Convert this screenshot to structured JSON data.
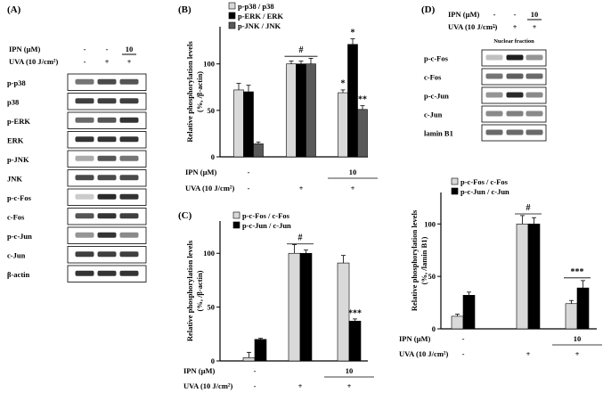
{
  "panels": {
    "A": {
      "label": "(A)",
      "treat": {
        "ipn_label": "IPN (µM)",
        "uva_label": "UVA (10 J/cm²)",
        "ipn_values": [
          "-",
          "-",
          "10"
        ],
        "uva_values": [
          "-",
          "+",
          "+"
        ]
      },
      "blots": [
        {
          "label": "p-p38",
          "bands": [
            0.55,
            0.75,
            0.7
          ]
        },
        {
          "label": "p38",
          "bands": [
            0.8,
            0.8,
            0.8
          ]
        },
        {
          "label": "p-ERK",
          "bands": [
            0.6,
            0.7,
            0.85
          ]
        },
        {
          "label": "ERK",
          "bands": [
            0.85,
            0.85,
            0.85
          ]
        },
        {
          "label": "p-JNK",
          "bands": [
            0.3,
            0.7,
            0.55
          ]
        },
        {
          "label": "JNK",
          "bands": [
            0.75,
            0.75,
            0.75
          ]
        },
        {
          "label": "p-c-Fos",
          "bands": [
            0.15,
            0.9,
            0.85
          ]
        },
        {
          "label": "c-Fos",
          "bands": [
            0.7,
            0.85,
            0.8
          ]
        },
        {
          "label": "p-c-Jun",
          "bands": [
            0.4,
            0.85,
            0.45
          ]
        },
        {
          "label": "c-Jun",
          "bands": [
            0.8,
            0.8,
            0.8
          ]
        },
        {
          "label": "β-actin",
          "bands": [
            0.85,
            0.85,
            0.85
          ]
        }
      ]
    },
    "D_blot": {
      "label": "(D)",
      "treat": {
        "ipn_label": "IPN (µM)",
        "uva_label": "UVA (10 J/cm²)",
        "ipn_values": [
          "-",
          "-",
          "10"
        ],
        "uva_values": [
          "-",
          "+",
          "+"
        ]
      },
      "fraction_label": "Nuclear fraction",
      "blots": [
        {
          "label": "p-c-Fos",
          "bands": [
            0.2,
            0.95,
            0.4
          ]
        },
        {
          "label": "c-Fos",
          "bands": [
            0.55,
            0.65,
            0.6
          ]
        },
        {
          "label": "p-c-Jun",
          "bands": [
            0.4,
            0.9,
            0.45
          ]
        },
        {
          "label": "c-Jun",
          "bands": [
            0.45,
            0.5,
            0.45
          ]
        },
        {
          "label": "lamin B1",
          "bands": [
            0.6,
            0.6,
            0.6
          ]
        }
      ]
    }
  },
  "chart_data": [
    {
      "panel": "(B)",
      "type": "bar",
      "ylabel": "Relative phosphorylation levels (%, /β-actin)",
      "ylim": [
        0,
        140
      ],
      "yticks": [
        0,
        50,
        100
      ],
      "groups": 3,
      "series": [
        {
          "name": "p-p38 / p38",
          "color": "#d9d9d9",
          "values": [
            72,
            100,
            69
          ],
          "errors": [
            7,
            3,
            3
          ]
        },
        {
          "name": "p-ERK / ERK",
          "color": "#000000",
          "values": [
            70,
            100,
            121
          ],
          "errors": [
            7,
            3,
            6
          ]
        },
        {
          "name": "p-JNK / JNK",
          "color": "#595959",
          "values": [
            14,
            100,
            51
          ],
          "errors": [
            2,
            6,
            4
          ]
        }
      ],
      "annotations": [
        {
          "text": "#",
          "group": 1,
          "bracket": true,
          "y": 112
        },
        {
          "text": "*",
          "group": 2,
          "series": 0,
          "y": 76
        },
        {
          "text": "*",
          "group": 2,
          "series": 1,
          "y": 131
        },
        {
          "text": "**",
          "group": 2,
          "series": 2,
          "y": 59
        }
      ],
      "ipn_label": "IPN (µM)",
      "uva_label": "UVA (10 J/cm²)",
      "ipn_values": [
        "-",
        "",
        "10"
      ],
      "uva_values": [
        "-",
        "+",
        "+"
      ]
    },
    {
      "panel": "(C)",
      "type": "bar",
      "ylabel": "Relative phosphorylation levels (%, /β-actin)",
      "ylim": [
        0,
        130
      ],
      "yticks": [
        0,
        50,
        100
      ],
      "groups": 3,
      "series": [
        {
          "name": "p-c-Fos / c-Fos",
          "color": "#d9d9d9",
          "values": [
            3,
            100,
            91
          ],
          "errors": [
            5,
            8,
            7
          ]
        },
        {
          "name": "p-c-Jun / c-Jun",
          "color": "#000000",
          "values": [
            20,
            100,
            37
          ],
          "errors": [
            1,
            3,
            2
          ]
        }
      ],
      "annotations": [
        {
          "text": "#",
          "group": 1,
          "bracket": true,
          "y": 112
        },
        {
          "text": "***",
          "group": 2,
          "series": 1,
          "y": 42
        }
      ],
      "ipn_label": "IPN (µM)",
      "uva_label": "UVA (10 J/cm²)",
      "ipn_values": [
        "-",
        "",
        "10"
      ],
      "uva_values": [
        "-",
        "+",
        "+"
      ]
    },
    {
      "panel": "(D)",
      "type": "bar",
      "ylabel": "Relative phosphorylation levels (%, /lamin B1)",
      "ylim": [
        0,
        130
      ],
      "yticks": [
        0,
        50,
        100
      ],
      "groups": 3,
      "series": [
        {
          "name": "p-c-Fos / c-Fos",
          "color": "#d9d9d9",
          "values": [
            12,
            100,
            24
          ],
          "errors": [
            2,
            8,
            3
          ]
        },
        {
          "name": "p-c-Jun / c-Jun",
          "color": "#000000",
          "values": [
            32,
            100,
            39
          ],
          "errors": [
            3,
            6,
            7
          ]
        }
      ],
      "annotations": [
        {
          "text": "#",
          "group": 1,
          "bracket": true,
          "y": 113
        },
        {
          "text": "***",
          "group": 2,
          "bracket": true,
          "y": 52
        }
      ],
      "ipn_label": "IPN (µM)",
      "uva_label": "UVA (10 J/cm²)",
      "ipn_values": [
        "-",
        "",
        "10"
      ],
      "uva_values": [
        "-",
        "+",
        "+"
      ]
    }
  ]
}
